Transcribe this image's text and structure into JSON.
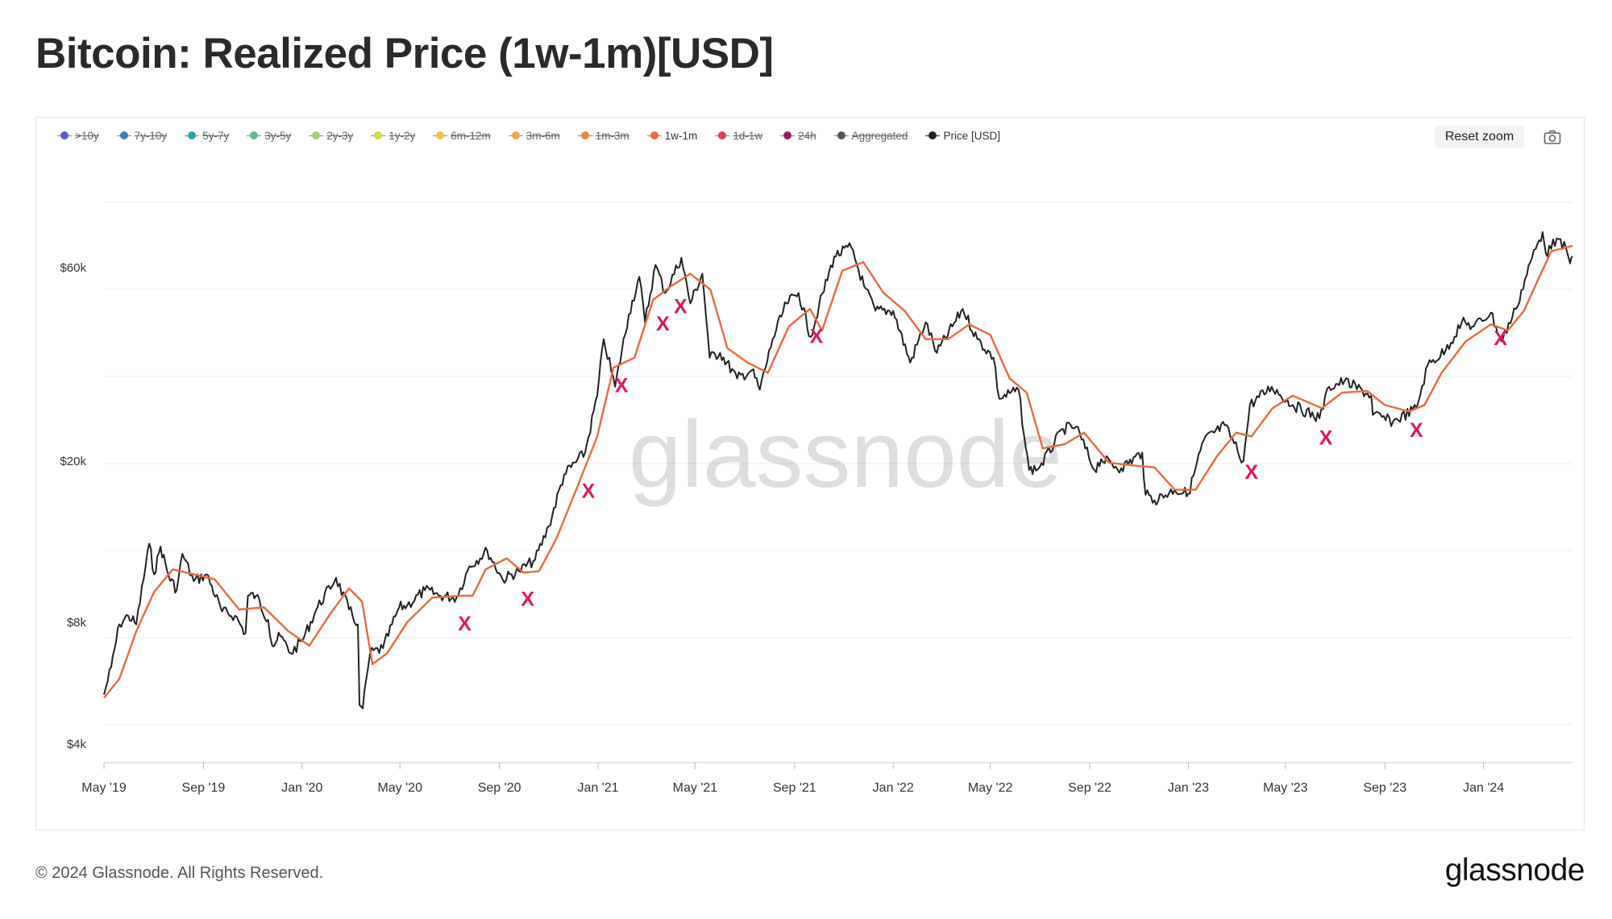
{
  "title": "Bitcoin: Realized Price (1w-1m)[USD]",
  "legend": [
    {
      "label": ">10y",
      "color": "#5b5ec6",
      "enabled": false
    },
    {
      "label": "7y-10y",
      "color": "#3a7fc4",
      "enabled": false
    },
    {
      "label": "5y-7y",
      "color": "#2ea7a0",
      "enabled": false
    },
    {
      "label": "3y-5y",
      "color": "#5cc08e",
      "enabled": false
    },
    {
      "label": "2y-3y",
      "color": "#9ed36a",
      "enabled": false
    },
    {
      "label": "1y-2y",
      "color": "#d3d94a",
      "enabled": false
    },
    {
      "label": "6m-12m",
      "color": "#f1c44a",
      "enabled": false
    },
    {
      "label": "3m-6m",
      "color": "#f2a84a",
      "enabled": false
    },
    {
      "label": "1m-3m",
      "color": "#ef8a3c",
      "enabled": false
    },
    {
      "label": "1w-1m",
      "color": "#ec6a3d",
      "enabled": true
    },
    {
      "label": "1d-1w",
      "color": "#d7405c",
      "enabled": false
    },
    {
      "label": "24h",
      "color": "#9c1d5e",
      "enabled": false
    },
    {
      "label": "Aggregated",
      "color": "#555555",
      "enabled": false
    },
    {
      "label": "Price [USD]",
      "color": "#222222",
      "enabled": true
    }
  ],
  "toolbar": {
    "reset_zoom": "Reset zoom"
  },
  "watermark": "glassnode",
  "footer": {
    "copyright": "© 2024 Glassnode. All Rights Reserved.",
    "logo": "glassnode"
  },
  "chart_data": {
    "type": "line",
    "title": "Bitcoin: Realized Price (1w-1m)[USD]",
    "y_scale": "log",
    "ylim": [
      3600,
      120000
    ],
    "x_range": [
      "2019-05-01",
      "2024-04-20"
    ],
    "y_ticks": [
      {
        "value": 4000,
        "label": "$4k"
      },
      {
        "value": 8000,
        "label": "$8k"
      },
      {
        "value": 20000,
        "label": "$20k"
      },
      {
        "value": 60000,
        "label": "$60k"
      }
    ],
    "x_ticks": [
      {
        "date": "2019-05-01",
        "label": "May '19"
      },
      {
        "date": "2019-09-01",
        "label": "Sep '19"
      },
      {
        "date": "2020-01-01",
        "label": "Jan '20"
      },
      {
        "date": "2020-05-01",
        "label": "May '20"
      },
      {
        "date": "2020-09-01",
        "label": "Sep '20"
      },
      {
        "date": "2021-01-01",
        "label": "Jan '21"
      },
      {
        "date": "2021-05-01",
        "label": "May '21"
      },
      {
        "date": "2021-09-01",
        "label": "Sep '21"
      },
      {
        "date": "2022-01-01",
        "label": "Jan '22"
      },
      {
        "date": "2022-05-01",
        "label": "May '22"
      },
      {
        "date": "2022-09-01",
        "label": "Sep '22"
      },
      {
        "date": "2023-01-01",
        "label": "Jan '23"
      },
      {
        "date": "2023-05-01",
        "label": "May '23"
      },
      {
        "date": "2023-09-01",
        "label": "Sep '23"
      },
      {
        "date": "2024-01-01",
        "label": "Jan '24"
      }
    ],
    "series": [
      {
        "name": "Price [USD]",
        "color": "#222222",
        "points": [
          [
            "2019-05-01",
            5300
          ],
          [
            "2019-05-10",
            6200
          ],
          [
            "2019-05-20",
            7900
          ],
          [
            "2019-05-31",
            8300
          ],
          [
            "2019-06-10",
            7900
          ],
          [
            "2019-06-26",
            12500
          ],
          [
            "2019-07-02",
            10500
          ],
          [
            "2019-07-10",
            12300
          ],
          [
            "2019-07-20",
            10400
          ],
          [
            "2019-07-30",
            9600
          ],
          [
            "2019-08-06",
            11800
          ],
          [
            "2019-08-20",
            10100
          ],
          [
            "2019-09-05",
            10500
          ],
          [
            "2019-09-24",
            8500
          ],
          [
            "2019-10-10",
            8300
          ],
          [
            "2019-10-23",
            7500
          ],
          [
            "2019-10-26",
            9300
          ],
          [
            "2019-11-05",
            9300
          ],
          [
            "2019-11-20",
            8100
          ],
          [
            "2019-11-25",
            7000
          ],
          [
            "2019-12-05",
            7400
          ],
          [
            "2019-12-18",
            6700
          ],
          [
            "2020-01-01",
            7200
          ],
          [
            "2020-01-20",
            8700
          ],
          [
            "2020-02-12",
            10300
          ],
          [
            "2020-02-28",
            8600
          ],
          [
            "2020-03-10",
            7900
          ],
          [
            "2020-03-12",
            5000
          ],
          [
            "2020-03-16",
            4900
          ],
          [
            "2020-03-25",
            6700
          ],
          [
            "2020-04-10",
            6900
          ],
          [
            "2020-04-30",
            8700
          ],
          [
            "2020-05-10",
            8800
          ],
          [
            "2020-06-01",
            9600
          ],
          [
            "2020-06-20",
            9300
          ],
          [
            "2020-07-10",
            9200
          ],
          [
            "2020-07-26",
            11000
          ],
          [
            "2020-08-17",
            12000
          ],
          [
            "2020-09-05",
            10200
          ],
          [
            "2020-09-25",
            10700
          ],
          [
            "2020-10-15",
            11400
          ],
          [
            "2020-11-01",
            13800
          ],
          [
            "2020-11-20",
            18500
          ],
          [
            "2020-12-16",
            21000
          ],
          [
            "2020-12-31",
            29000
          ],
          [
            "2021-01-08",
            40000
          ],
          [
            "2021-01-22",
            30500
          ],
          [
            "2021-02-08",
            46000
          ],
          [
            "2021-02-21",
            57000
          ],
          [
            "2021-02-28",
            44000
          ],
          [
            "2021-03-13",
            61000
          ],
          [
            "2021-03-25",
            52000
          ],
          [
            "2021-04-14",
            63500
          ],
          [
            "2021-04-25",
            49000
          ],
          [
            "2021-05-10",
            58000
          ],
          [
            "2021-05-19",
            36000
          ],
          [
            "2021-06-01",
            37000
          ],
          [
            "2021-06-22",
            32000
          ],
          [
            "2021-07-10",
            33500
          ],
          [
            "2021-07-20",
            30000
          ],
          [
            "2021-08-05",
            40000
          ],
          [
            "2021-08-22",
            49000
          ],
          [
            "2021-09-06",
            52000
          ],
          [
            "2021-09-21",
            40500
          ],
          [
            "2021-10-01",
            48000
          ],
          [
            "2021-10-20",
            64000
          ],
          [
            "2021-11-10",
            67500
          ],
          [
            "2021-11-26",
            54000
          ],
          [
            "2021-12-10",
            47000
          ],
          [
            "2022-01-01",
            47000
          ],
          [
            "2022-01-22",
            35000
          ],
          [
            "2022-02-10",
            44000
          ],
          [
            "2022-02-24",
            37000
          ],
          [
            "2022-03-28",
            47500
          ],
          [
            "2022-04-15",
            40000
          ],
          [
            "2022-05-05",
            36000
          ],
          [
            "2022-05-12",
            28500
          ],
          [
            "2022-06-05",
            30000
          ],
          [
            "2022-06-14",
            21500
          ],
          [
            "2022-06-18",
            19000
          ],
          [
            "2022-07-01",
            19300
          ],
          [
            "2022-07-30",
            24000
          ],
          [
            "2022-08-15",
            24300
          ],
          [
            "2022-09-07",
            19000
          ],
          [
            "2022-09-15",
            20200
          ],
          [
            "2022-10-10",
            19200
          ],
          [
            "2022-11-05",
            21000
          ],
          [
            "2022-11-09",
            16500
          ],
          [
            "2022-11-20",
            16000
          ],
          [
            "2022-12-15",
            17000
          ],
          [
            "2023-01-01",
            16600
          ],
          [
            "2023-01-20",
            22500
          ],
          [
            "2023-02-15",
            24500
          ],
          [
            "2023-03-10",
            20000
          ],
          [
            "2023-03-18",
            27500
          ],
          [
            "2023-04-14",
            30500
          ],
          [
            "2023-05-10",
            27500
          ],
          [
            "2023-06-12",
            25500
          ],
          [
            "2023-06-24",
            30500
          ],
          [
            "2023-07-13",
            31500
          ],
          [
            "2023-08-15",
            29000
          ],
          [
            "2023-08-17",
            26000
          ],
          [
            "2023-09-11",
            25000
          ],
          [
            "2023-10-10",
            27000
          ],
          [
            "2023-10-24",
            34500
          ],
          [
            "2023-11-15",
            37500
          ],
          [
            "2023-12-05",
            44000
          ],
          [
            "2023-12-20",
            43000
          ],
          [
            "2024-01-10",
            46500
          ],
          [
            "2024-01-23",
            39500
          ],
          [
            "2024-02-10",
            47500
          ],
          [
            "2024-02-28",
            62000
          ],
          [
            "2024-03-14",
            73500
          ],
          [
            "2024-03-20",
            64000
          ],
          [
            "2024-03-27",
            70500
          ],
          [
            "2024-04-12",
            67000
          ],
          [
            "2024-04-17",
            61500
          ],
          [
            "2024-04-20",
            64000
          ]
        ]
      },
      {
        "name": "1w-1m",
        "color": "#ec6a3d",
        "points": [
          [
            "2019-05-01",
            5200
          ],
          [
            "2019-05-20",
            5800
          ],
          [
            "2019-06-10",
            7600
          ],
          [
            "2019-07-02",
            9500
          ],
          [
            "2019-07-25",
            10800
          ],
          [
            "2019-08-20",
            10500
          ],
          [
            "2019-09-15",
            10200
          ],
          [
            "2019-10-15",
            8600
          ],
          [
            "2019-11-15",
            8700
          ],
          [
            "2019-12-15",
            7600
          ],
          [
            "2020-01-10",
            7000
          ],
          [
            "2020-02-05",
            8400
          ],
          [
            "2020-02-28",
            9700
          ],
          [
            "2020-03-15",
            9000
          ],
          [
            "2020-03-28",
            6300
          ],
          [
            "2020-04-15",
            6700
          ],
          [
            "2020-05-10",
            8000
          ],
          [
            "2020-06-10",
            9200
          ],
          [
            "2020-07-15",
            9300
          ],
          [
            "2020-07-30",
            9300
          ],
          [
            "2020-08-15",
            10800
          ],
          [
            "2020-09-10",
            11500
          ],
          [
            "2020-10-01",
            10600
          ],
          [
            "2020-10-20",
            10700
          ],
          [
            "2020-11-10",
            12800
          ],
          [
            "2020-12-05",
            17000
          ],
          [
            "2020-12-31",
            23000
          ],
          [
            "2021-01-20",
            34000
          ],
          [
            "2021-02-15",
            36000
          ],
          [
            "2021-03-10",
            50000
          ],
          [
            "2021-04-01",
            54000
          ],
          [
            "2021-04-25",
            58000
          ],
          [
            "2021-05-20",
            53000
          ],
          [
            "2021-06-10",
            38000
          ],
          [
            "2021-07-05",
            35000
          ],
          [
            "2021-07-30",
            33000
          ],
          [
            "2021-08-25",
            43000
          ],
          [
            "2021-09-20",
            47500
          ],
          [
            "2021-10-05",
            42000
          ],
          [
            "2021-10-30",
            59000
          ],
          [
            "2021-11-25",
            62000
          ],
          [
            "2021-12-20",
            52000
          ],
          [
            "2022-01-15",
            47000
          ],
          [
            "2022-02-10",
            40000
          ],
          [
            "2022-03-10",
            40000
          ],
          [
            "2022-04-05",
            43500
          ],
          [
            "2022-05-01",
            41000
          ],
          [
            "2022-05-25",
            32000
          ],
          [
            "2022-06-15",
            29500
          ],
          [
            "2022-07-05",
            21500
          ],
          [
            "2022-08-01",
            22000
          ],
          [
            "2022-08-25",
            23500
          ],
          [
            "2022-09-25",
            19800
          ],
          [
            "2022-10-25",
            19500
          ],
          [
            "2022-11-20",
            19300
          ],
          [
            "2022-12-15",
            17000
          ],
          [
            "2023-01-10",
            17000
          ],
          [
            "2023-02-05",
            20500
          ],
          [
            "2023-03-01",
            23500
          ],
          [
            "2023-03-20",
            23000
          ],
          [
            "2023-04-15",
            27000
          ],
          [
            "2023-05-10",
            29000
          ],
          [
            "2023-06-15",
            27000
          ],
          [
            "2023-07-10",
            29500
          ],
          [
            "2023-08-10",
            29800
          ],
          [
            "2023-09-01",
            27500
          ],
          [
            "2023-10-01",
            26500
          ],
          [
            "2023-10-20",
            27500
          ],
          [
            "2023-11-10",
            33000
          ],
          [
            "2023-12-10",
            39500
          ],
          [
            "2024-01-10",
            43500
          ],
          [
            "2024-01-31",
            42000
          ],
          [
            "2024-02-20",
            47000
          ],
          [
            "2024-03-10",
            57000
          ],
          [
            "2024-03-25",
            66000
          ],
          [
            "2024-04-20",
            68000
          ]
        ]
      }
    ],
    "annotations": [
      {
        "label": "X",
        "date": "2020-07-20",
        "value": 8000
      },
      {
        "label": "X",
        "date": "2020-10-06",
        "value": 9200
      },
      {
        "label": "X",
        "date": "2020-12-20",
        "value": 17000
      },
      {
        "label": "X",
        "date": "2021-01-30",
        "value": 31000
      },
      {
        "label": "X",
        "date": "2021-03-22",
        "value": 44000
      },
      {
        "label": "X",
        "date": "2021-04-13",
        "value": 48500
      },
      {
        "label": "X",
        "date": "2021-09-28",
        "value": 41000
      },
      {
        "label": "X",
        "date": "2023-03-20",
        "value": 18900
      },
      {
        "label": "X",
        "date": "2023-06-20",
        "value": 23000
      },
      {
        "label": "X",
        "date": "2023-10-10",
        "value": 24000
      },
      {
        "label": "X",
        "date": "2024-01-22",
        "value": 40500
      }
    ]
  }
}
